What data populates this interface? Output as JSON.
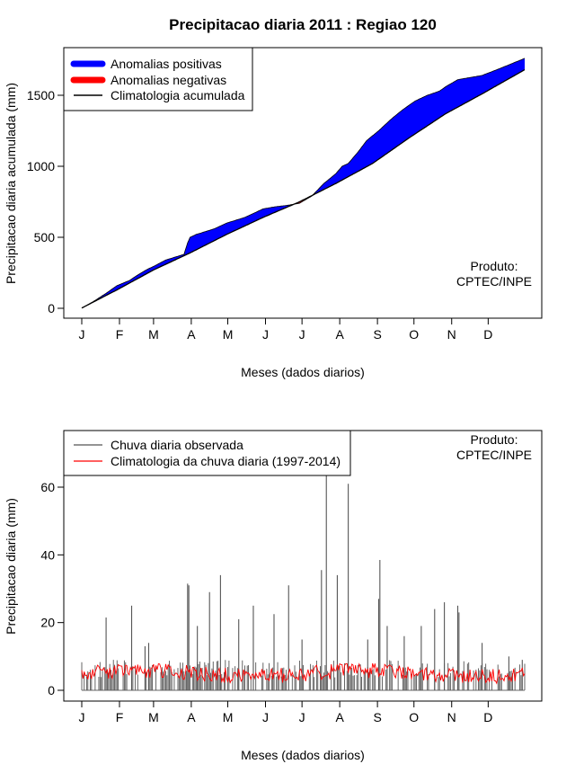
{
  "title": "Precipitacao diaria 2011 : Regiao 120",
  "product_label": [
    "Produto:",
    "CPTEC/INPE"
  ],
  "chart_data": [
    {
      "type": "area",
      "name": "cumulative",
      "ylabel": "Precipitacao diaria acumulada (mm)",
      "xlabel": "Meses (dados diarios)",
      "xlim": [
        1,
        365
      ],
      "ylim": [
        0,
        1760
      ],
      "yticks": [
        0,
        500,
        1000,
        1500
      ],
      "month_ticks": [
        "J",
        "F",
        "M",
        "A",
        "M",
        "J",
        "J",
        "A",
        "S",
        "O",
        "N",
        "D"
      ],
      "month_start_days": [
        1,
        32,
        60,
        91,
        121,
        152,
        182,
        213,
        244,
        274,
        305,
        335
      ],
      "legend": [
        {
          "label": "Anomalias positivas",
          "color": "#0000ff",
          "style": "thick"
        },
        {
          "label": "Anomalias negativas",
          "color": "#ff0000",
          "style": "thick"
        },
        {
          "label": "Climatologia acumulada",
          "color": "#000000",
          "style": "line"
        }
      ],
      "series": [
        {
          "name": "Precipitacao observada acumulada",
          "days": [
            1,
            10,
            20,
            30,
            40,
            48,
            55,
            60,
            70,
            85,
            88,
            90,
            95,
            110,
            120,
            135,
            145,
            150,
            160,
            170,
            180,
            190,
            200,
            203,
            210,
            215,
            220,
            228,
            235,
            245,
            255,
            265,
            275,
            285,
            295,
            300,
            310,
            330,
            345,
            365
          ],
          "values": [
            2,
            45,
            100,
            160,
            195,
            240,
            275,
            295,
            340,
            380,
            460,
            500,
            520,
            560,
            600,
            640,
            680,
            700,
            715,
            725,
            740,
            790,
            880,
            900,
            950,
            1000,
            1020,
            1100,
            1180,
            1250,
            1330,
            1400,
            1460,
            1500,
            1530,
            1560,
            1610,
            1640,
            1690,
            1760
          ]
        },
        {
          "name": "Climatologia acumulada",
          "days": [
            1,
            30,
            60,
            90,
            120,
            150,
            180,
            210,
            240,
            270,
            300,
            330,
            365
          ],
          "values": [
            2,
            130,
            270,
            390,
            520,
            640,
            750,
            880,
            1020,
            1200,
            1370,
            1510,
            1680
          ]
        }
      ]
    },
    {
      "type": "bar",
      "name": "daily",
      "ylabel": "Precipitacao diaria (mm)",
      "xlabel": "Meses (dados diarios)",
      "xlim": [
        1,
        365
      ],
      "ylim": [
        0,
        75
      ],
      "yticks": [
        0,
        20,
        40,
        60
      ],
      "month_ticks": [
        "J",
        "F",
        "M",
        "A",
        "M",
        "J",
        "J",
        "A",
        "S",
        "O",
        "N",
        "D"
      ],
      "month_start_days": [
        1,
        32,
        60,
        91,
        121,
        152,
        182,
        213,
        244,
        274,
        305,
        335
      ],
      "legend": [
        {
          "label": "Chuva diaria observada",
          "color": "#555555",
          "style": "line"
        },
        {
          "label": "Climatologia da chuva diaria (1997-2014)",
          "color": "#ff0000",
          "style": "line"
        }
      ],
      "observed": [
        {
          "day": 21,
          "value": 21.5
        },
        {
          "day": 42,
          "value": 25
        },
        {
          "day": 53,
          "value": 13
        },
        {
          "day": 56,
          "value": 14
        },
        {
          "day": 88,
          "value": 31.5
        },
        {
          "day": 89,
          "value": 31
        },
        {
          "day": 96,
          "value": 19
        },
        {
          "day": 106,
          "value": 29
        },
        {
          "day": 115,
          "value": 34
        },
        {
          "day": 130,
          "value": 21
        },
        {
          "day": 142,
          "value": 25
        },
        {
          "day": 159,
          "value": 22.5
        },
        {
          "day": 171,
          "value": 31
        },
        {
          "day": 182,
          "value": 15
        },
        {
          "day": 198,
          "value": 35.5
        },
        {
          "day": 202,
          "value": 66
        },
        {
          "day": 211,
          "value": 34
        },
        {
          "day": 220,
          "value": 61
        },
        {
          "day": 236,
          "value": 15
        },
        {
          "day": 246,
          "value": 38.5
        },
        {
          "day": 245,
          "value": 27
        },
        {
          "day": 252,
          "value": 19
        },
        {
          "day": 266,
          "value": 16
        },
        {
          "day": 280,
          "value": 19
        },
        {
          "day": 291,
          "value": 24
        },
        {
          "day": 299,
          "value": 26
        },
        {
          "day": 310,
          "value": 25
        },
        {
          "day": 311,
          "value": 23
        },
        {
          "day": 330,
          "value": 14
        },
        {
          "day": 352,
          "value": 10
        },
        {
          "day": 363,
          "value": 9
        }
      ],
      "climatology_mean": 5
    }
  ]
}
